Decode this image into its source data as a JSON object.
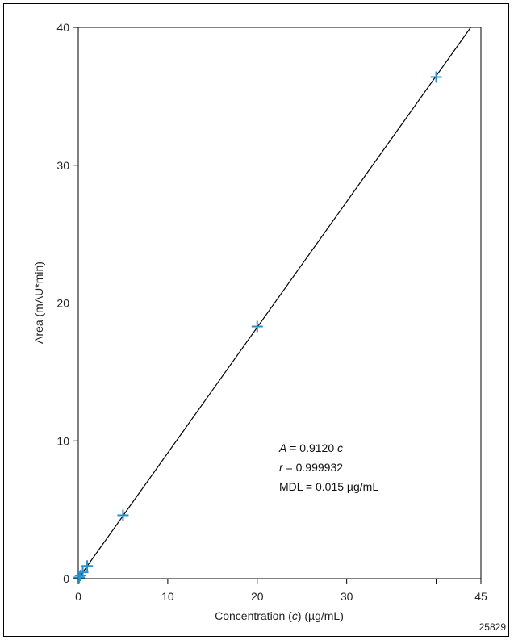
{
  "chart_data": {
    "type": "scatter",
    "title": "",
    "xlabel": "Concentration (c) (µg/mL)",
    "xlabel_parts": [
      "Concentration (",
      "c",
      ") (µg/mL)"
    ],
    "ylabel": "Area (mAU*min)",
    "xlim": [
      0,
      45
    ],
    "ylim": [
      0,
      40
    ],
    "x_ticks": [
      0,
      10,
      20,
      30,
      40,
      45
    ],
    "x_tick_labels": [
      "0",
      "10",
      "20",
      "30",
      "",
      "45"
    ],
    "y_ticks": [
      0,
      10,
      20,
      30,
      40
    ],
    "y_tick_labels": [
      "0",
      "10",
      "20",
      "30",
      "40"
    ],
    "grid": false,
    "series": [
      {
        "marker": "plus",
        "color": "#2a8fc8",
        "points": [
          {
            "x": 0.1,
            "y": 0.09
          },
          {
            "x": 0.25,
            "y": 0.23
          },
          {
            "x": 0.5,
            "y": 0.46
          },
          {
            "x": 1.0,
            "y": 0.92
          },
          {
            "x": 5.0,
            "y": 4.6
          },
          {
            "x": 20.0,
            "y": 18.3
          },
          {
            "x": 40.0,
            "y": 36.4
          }
        ]
      }
    ],
    "fit_line": {
      "slope": 0.912,
      "intercept": 0,
      "x_range": [
        0,
        45
      ],
      "color": "#000000"
    },
    "annotations": {
      "equation_var": "A",
      "equation_rest": " = 0.9120 ",
      "equation_c": "c",
      "r_var": "r",
      "r_rest": " =  0.999932",
      "mdl": "MDL = 0.015 µg/mL"
    },
    "figure_id": "25829"
  }
}
